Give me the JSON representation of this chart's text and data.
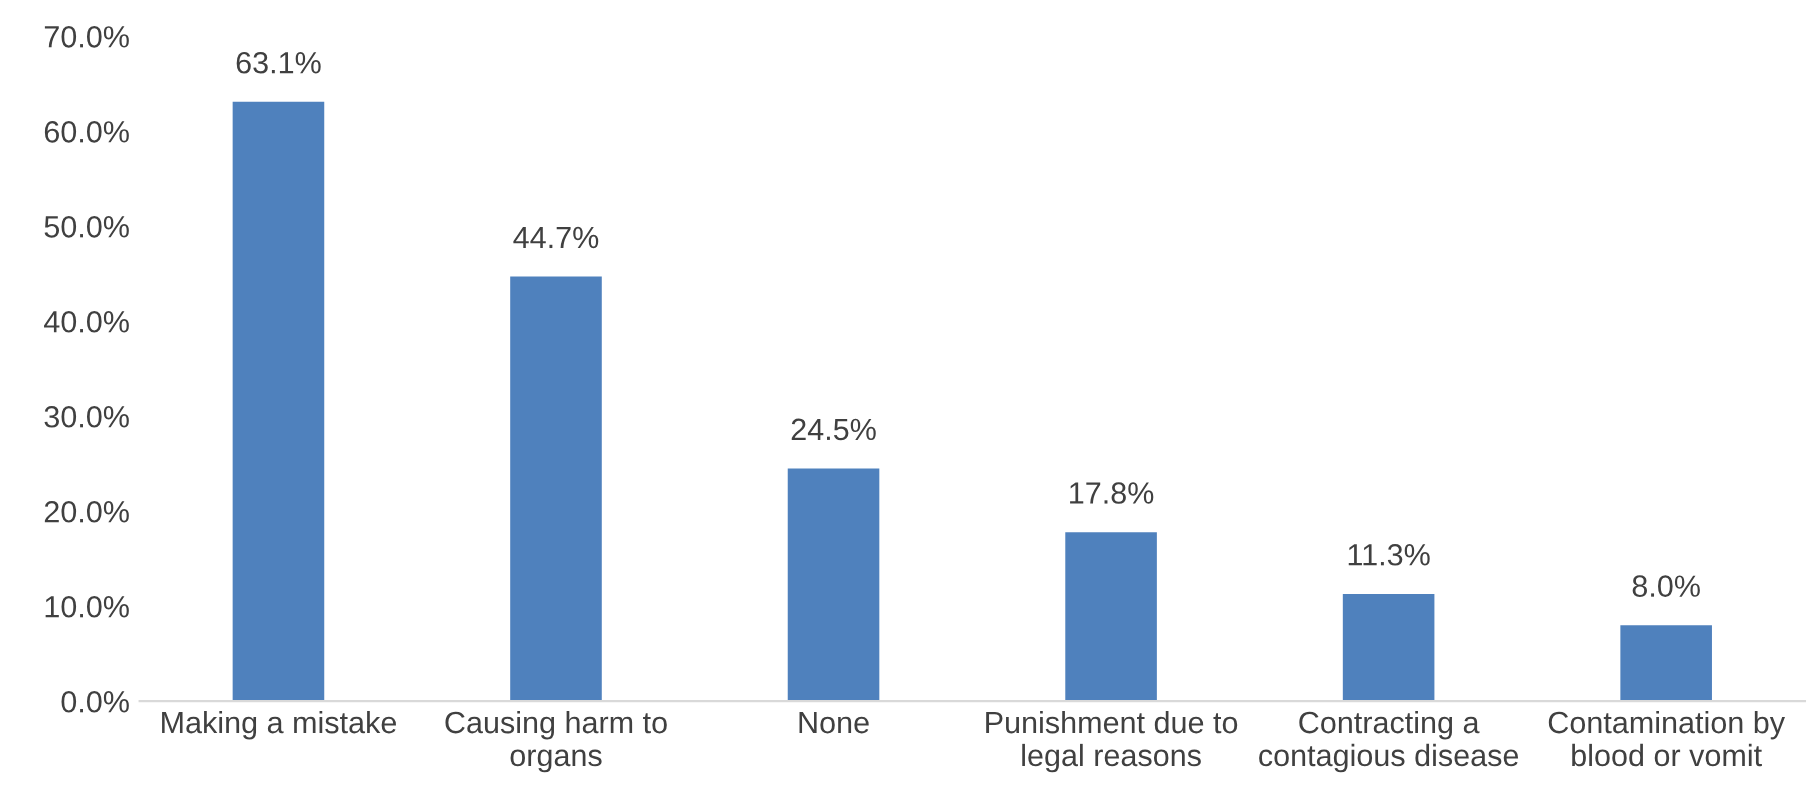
{
  "chart_data": {
    "type": "bar",
    "categories": [
      "Making a mistake",
      "Causing harm to organs",
      "None",
      "Punishment due to legal reasons",
      "Contracting a contagious disease",
      "Contamination by blood or vomit"
    ],
    "values": [
      63.1,
      44.7,
      24.5,
      17.8,
      11.3,
      8.0
    ],
    "value_labels": [
      "63.1%",
      "44.7%",
      "24.5%",
      "17.8%",
      "11.3%",
      "8.0%"
    ],
    "color": "#4f81bd",
    "ylim": [
      0,
      70
    ],
    "yticks": [
      {
        "value": 0,
        "label": "0.0%"
      },
      {
        "value": 10,
        "label": "10.0%"
      },
      {
        "value": 20,
        "label": "20.0%"
      },
      {
        "value": 30,
        "label": "30.0%"
      },
      {
        "value": 40,
        "label": "40.0%"
      },
      {
        "value": 50,
        "label": "50.0%"
      },
      {
        "value": 60,
        "label": "60.0%"
      },
      {
        "value": 70,
        "label": "70.0%"
      }
    ],
    "grid": false,
    "legend": false
  }
}
